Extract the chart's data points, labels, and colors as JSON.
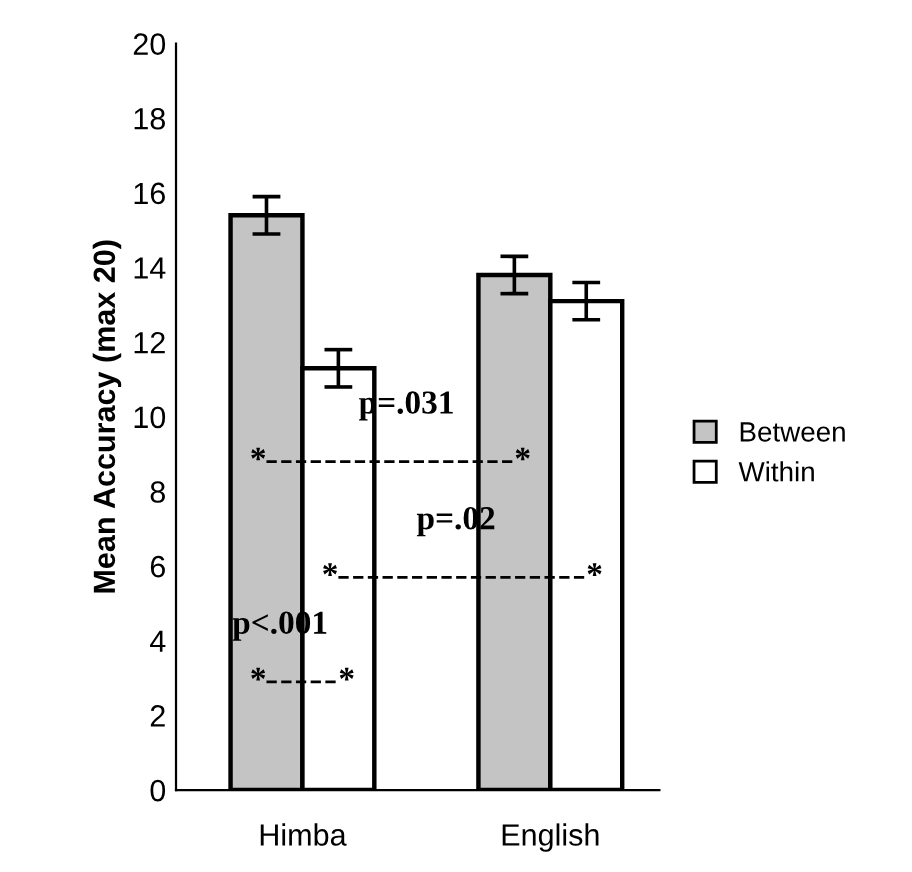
{
  "chart_data": {
    "type": "bar",
    "ylabel": "Mean Accuracy (max 20)",
    "categories": [
      "Himba",
      "English"
    ],
    "series": [
      {
        "name": "Between",
        "color": "#c4c4c4",
        "values": [
          15.4,
          13.8
        ],
        "errors": [
          0.5,
          0.5
        ]
      },
      {
        "name": "Within",
        "color": "#ffffff",
        "values": [
          11.3,
          13.1
        ],
        "errors": [
          0.5,
          0.5
        ]
      }
    ],
    "ylim": [
      0,
      20
    ],
    "yticks": [
      0,
      2,
      4,
      6,
      8,
      10,
      12,
      14,
      16,
      18,
      20
    ],
    "grid": false,
    "legend": "right",
    "annotations": [
      "p=.031",
      "*",
      "*",
      "p=.02",
      "*",
      "*",
      "p<.001",
      "*",
      "*"
    ]
  }
}
